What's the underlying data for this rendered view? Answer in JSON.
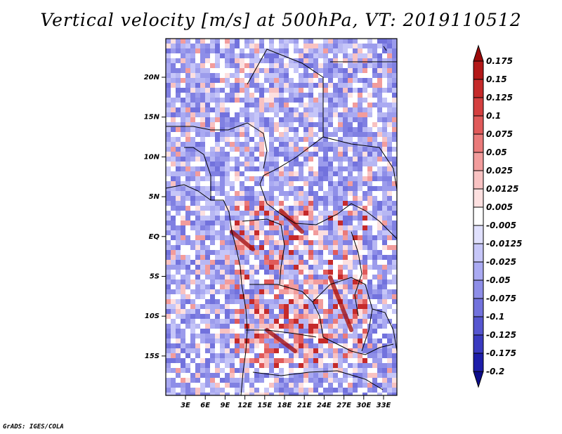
{
  "title": "Vertical velocity [m/s] at 500hPa, VT: 2019110512",
  "credit": "GrADS: IGES/COLA",
  "map": {
    "lat_labels": [
      "20N",
      "15N",
      "10N",
      "5N",
      "EQ",
      "5S",
      "10S",
      "15S"
    ],
    "lon_labels": [
      "3E",
      "6E",
      "9E",
      "12E",
      "15E",
      "18E",
      "21E",
      "24E",
      "27E",
      "30E",
      "33E"
    ]
  },
  "colorbar": {
    "labels": [
      "0.175",
      "0.15",
      "0.125",
      "0.1",
      "0.075",
      "0.05",
      "0.025",
      "0.0125",
      "0.005",
      "-0.005",
      "-0.0125",
      "-0.025",
      "-0.05",
      "-0.075",
      "-0.1",
      "-0.125",
      "-0.175",
      "-0.2"
    ],
    "colors": [
      "#9b0a0a",
      "#b31818",
      "#c52a2a",
      "#d43f3f",
      "#e05a5a",
      "#ea7a7a",
      "#f29c9c",
      "#f8c2c2",
      "#fde0e0",
      "#ffffff",
      "#e0e0fd",
      "#c6c6f8",
      "#aaaaf2",
      "#8e8ee8",
      "#7272dd",
      "#5656d0",
      "#3a3ac0",
      "#1e1eaa",
      "#0c0c8a"
    ]
  }
}
